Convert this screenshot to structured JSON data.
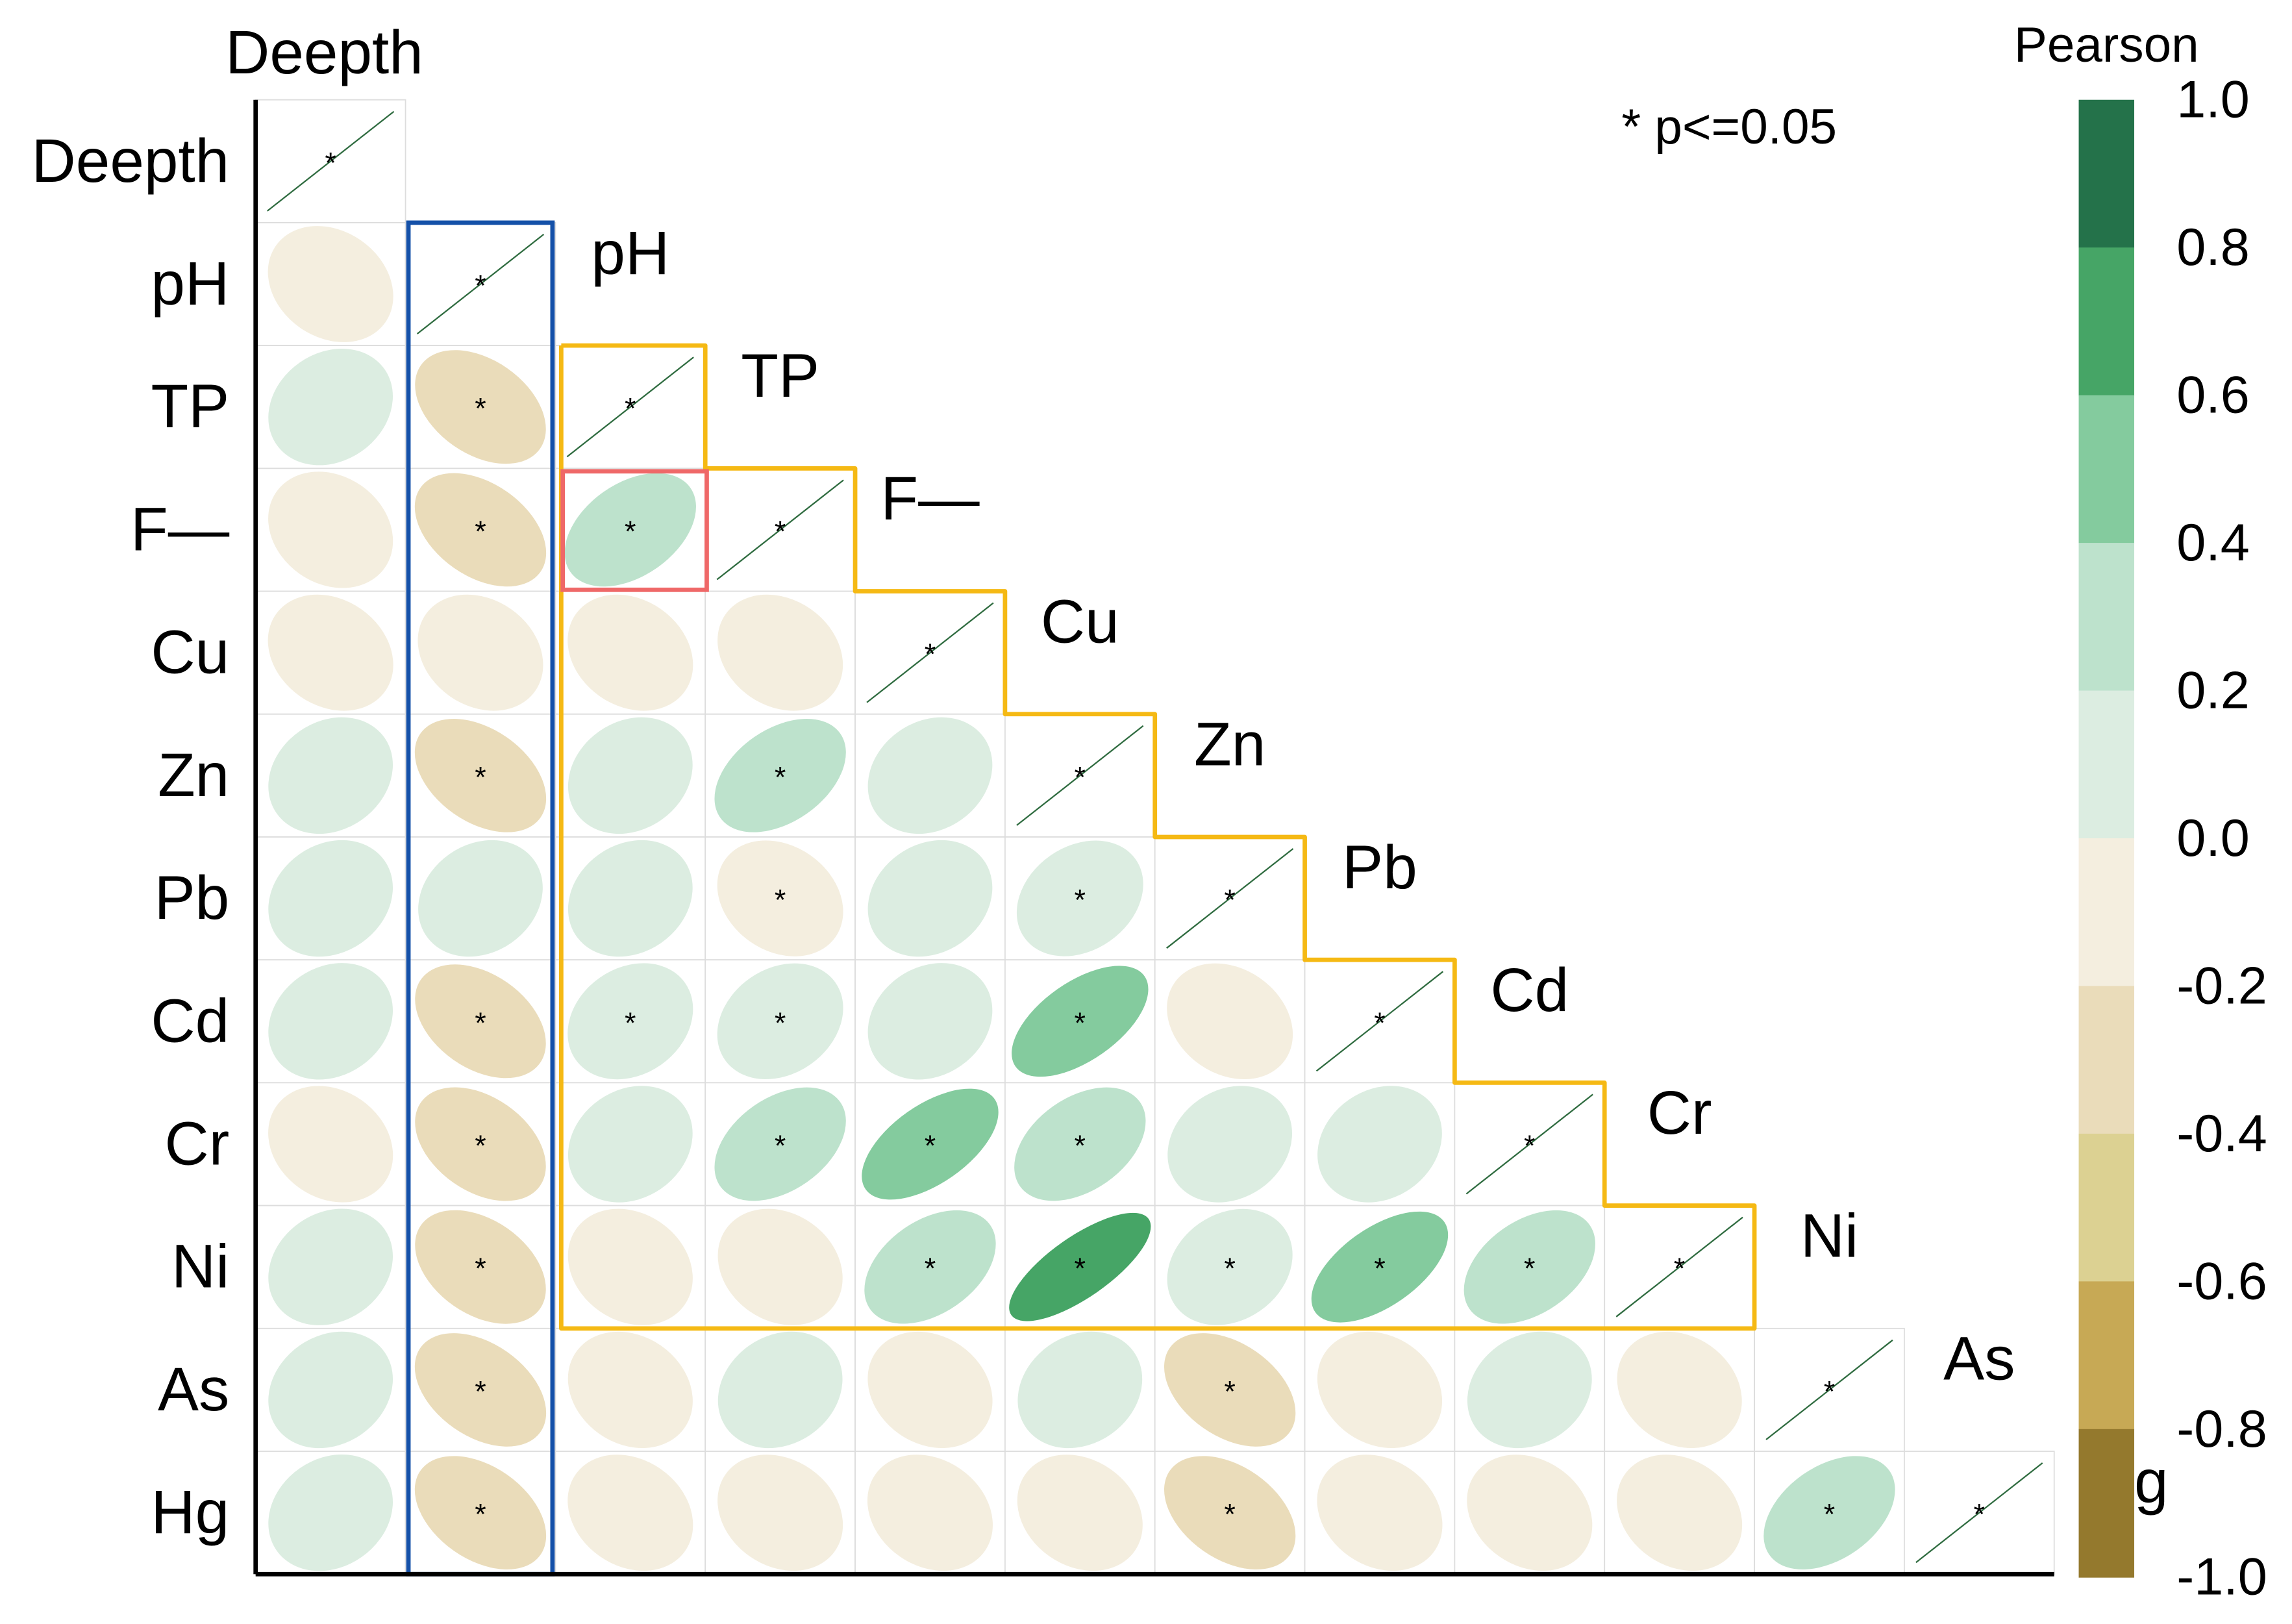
{
  "chart_data": {
    "type": "heatmap",
    "title": "",
    "variables": [
      "Deepth",
      "pH",
      "TP",
      "F—",
      "Cu",
      "Zn",
      "Pb",
      "Cd",
      "Cr",
      "Ni",
      "As",
      "Hg"
    ],
    "lower_triangle_r": [
      [
        1.0
      ],
      [
        -0.08,
        1.0
      ],
      [
        0.05,
        -0.28,
        1.0
      ],
      [
        -0.06,
        -0.3,
        0.3,
        1.0
      ],
      [
        -0.08,
        -0.08,
        -0.08,
        -0.08,
        1.0
      ],
      [
        0.05,
        -0.3,
        0.05,
        0.3,
        0.05,
        1.0
      ],
      [
        0.05,
        0.05,
        0.05,
        -0.1,
        0.05,
        0.12,
        1.0
      ],
      [
        0.05,
        -0.28,
        0.08,
        0.1,
        0.05,
        0.5,
        -0.1,
        1.0
      ],
      [
        -0.06,
        -0.28,
        0.05,
        0.3,
        0.5,
        0.3,
        0.05,
        0.05,
        1.0
      ],
      [
        0.05,
        -0.28,
        -0.06,
        -0.06,
        0.3,
        0.7,
        0.08,
        0.5,
        0.3,
        1.0
      ],
      [
        0.05,
        -0.3,
        -0.06,
        0.05,
        -0.06,
        0.05,
        -0.3,
        -0.06,
        0.05,
        -0.06,
        1.0
      ],
      [
        0.05,
        -0.3,
        -0.08,
        -0.08,
        -0.08,
        -0.08,
        -0.3,
        -0.08,
        -0.08,
        -0.08,
        0.3,
        1.0
      ]
    ],
    "significant": [
      [
        1
      ],
      [
        0,
        1
      ],
      [
        0,
        1,
        1
      ],
      [
        0,
        1,
        1,
        1
      ],
      [
        0,
        0,
        0,
        0,
        1
      ],
      [
        0,
        1,
        0,
        1,
        0,
        1
      ],
      [
        0,
        0,
        0,
        1,
        0,
        1,
        1
      ],
      [
        0,
        1,
        1,
        1,
        0,
        1,
        0,
        1
      ],
      [
        0,
        1,
        0,
        1,
        1,
        1,
        0,
        0,
        1
      ],
      [
        0,
        1,
        0,
        0,
        1,
        1,
        1,
        1,
        1,
        1
      ],
      [
        0,
        1,
        0,
        0,
        0,
        0,
        1,
        0,
        0,
        0,
        1
      ],
      [
        0,
        1,
        0,
        0,
        0,
        0,
        1,
        0,
        0,
        0,
        1,
        1
      ]
    ],
    "significance_note": "* p<=0.05",
    "significance_marker": "*",
    "colorbar": {
      "title": "Pearson",
      "range": [
        -1.0,
        1.0
      ],
      "tick_labels": [
        "1.0",
        "0.8",
        "0.6",
        "0.4",
        "0.2",
        "0.0",
        "-0.2",
        "-0.4",
        "-0.6",
        "-0.8",
        "-1.0"
      ],
      "bins_top_to_bottom": [
        "#24724a",
        "#46a566",
        "#84cb9e",
        "#bde2cc",
        "#dcede1",
        "#f4eedf",
        "#eadcba",
        "#dcd192",
        "#c7a955",
        "#94792d"
      ]
    },
    "highlights": {
      "column_box_color": "#1450a8",
      "region_outline_color": "#f5b914",
      "cell_box_color": "#ef6868"
    },
    "grid": true,
    "legend": "right"
  }
}
